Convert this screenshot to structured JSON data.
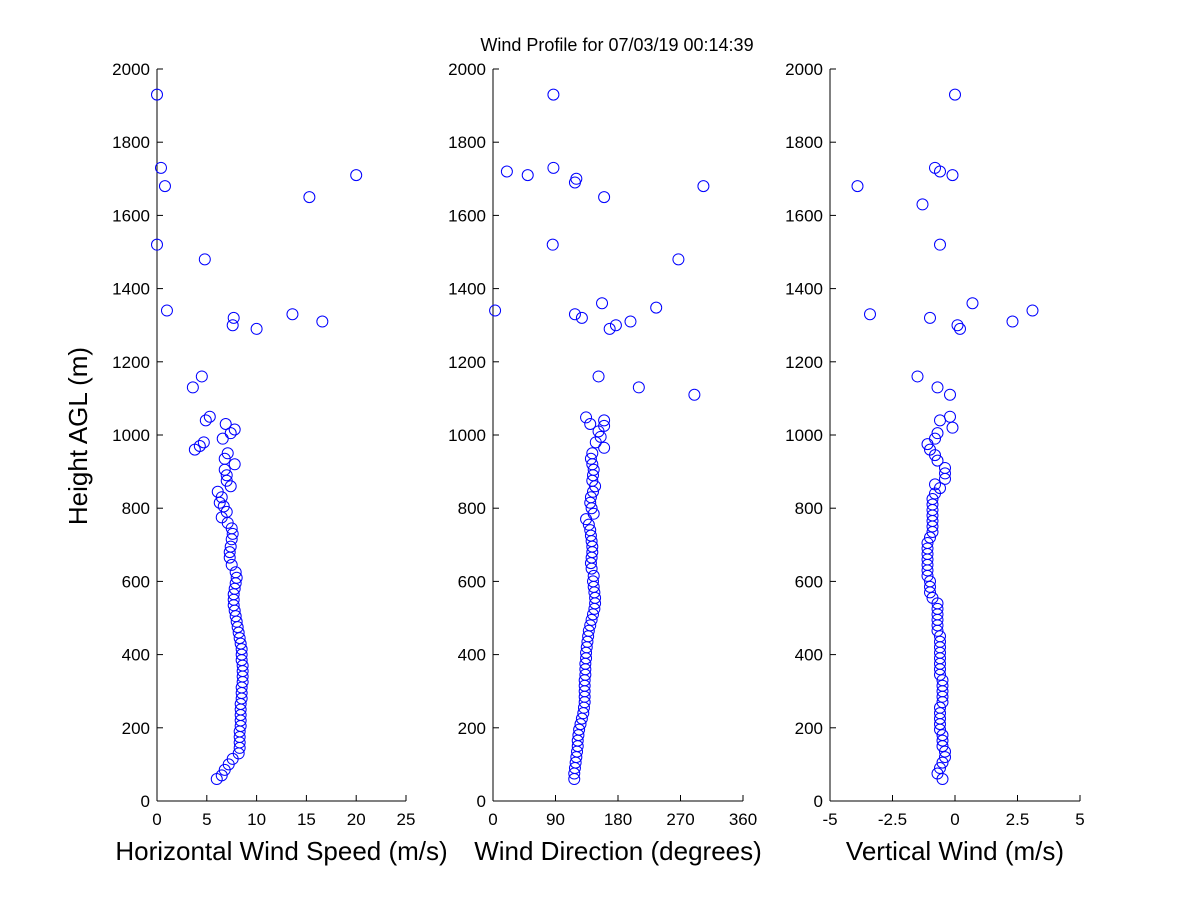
{
  "title": "Wind Profile for  07/03/19 00:14:39",
  "ylabel": "Height AGL (m)",
  "chart_data": [
    {
      "type": "scatter",
      "xlabel": "Horizontal Wind Speed (m/s)",
      "ylabel": "Height AGL (m)",
      "xlim": [
        0,
        25
      ],
      "ylim": [
        0,
        2000
      ],
      "xticks": [
        "0",
        "5",
        "10",
        "15",
        "20",
        "25"
      ],
      "yticks": [
        "0",
        "200",
        "400",
        "600",
        "800",
        "1000",
        "1200",
        "1400",
        "1600",
        "1800",
        "2000"
      ],
      "marker_color": "#0000ff",
      "points": [
        [
          6.0,
          60
        ],
        [
          6.5,
          70
        ],
        [
          6.8,
          85
        ],
        [
          7.2,
          100
        ],
        [
          7.6,
          115
        ],
        [
          8.2,
          130
        ],
        [
          8.3,
          145
        ],
        [
          8.3,
          160
        ],
        [
          8.3,
          175
        ],
        [
          8.3,
          190
        ],
        [
          8.4,
          205
        ],
        [
          8.4,
          220
        ],
        [
          8.4,
          235
        ],
        [
          8.4,
          250
        ],
        [
          8.4,
          265
        ],
        [
          8.5,
          280
        ],
        [
          8.5,
          295
        ],
        [
          8.5,
          310
        ],
        [
          8.6,
          325
        ],
        [
          8.6,
          340
        ],
        [
          8.6,
          355
        ],
        [
          8.6,
          370
        ],
        [
          8.5,
          385
        ],
        [
          8.5,
          400
        ],
        [
          8.5,
          415
        ],
        [
          8.4,
          430
        ],
        [
          8.3,
          445
        ],
        [
          8.2,
          460
        ],
        [
          8.1,
          475
        ],
        [
          8.0,
          490
        ],
        [
          7.9,
          505
        ],
        [
          7.8,
          520
        ],
        [
          7.7,
          535
        ],
        [
          7.7,
          550
        ],
        [
          7.7,
          565
        ],
        [
          7.8,
          580
        ],
        [
          7.9,
          595
        ],
        [
          8.0,
          610
        ],
        [
          7.9,
          625
        ],
        [
          7.5,
          645
        ],
        [
          7.3,
          665
        ],
        [
          7.3,
          680
        ],
        [
          7.4,
          695
        ],
        [
          7.5,
          715
        ],
        [
          7.6,
          730
        ],
        [
          7.5,
          745
        ],
        [
          7.1,
          760
        ],
        [
          6.5,
          775
        ],
        [
          7.0,
          790
        ],
        [
          6.7,
          805
        ],
        [
          6.3,
          815
        ],
        [
          6.5,
          830
        ],
        [
          6.1,
          845
        ],
        [
          7.4,
          860
        ],
        [
          7.0,
          875
        ],
        [
          7.0,
          890
        ],
        [
          6.8,
          905
        ],
        [
          7.8,
          920
        ],
        [
          6.8,
          935
        ],
        [
          7.1,
          950
        ],
        [
          3.8,
          960
        ],
        [
          4.3,
          970
        ],
        [
          4.7,
          980
        ],
        [
          6.6,
          990
        ],
        [
          7.4,
          1005
        ],
        [
          7.8,
          1015
        ],
        [
          6.9,
          1030
        ],
        [
          4.9,
          1040
        ],
        [
          5.3,
          1050
        ],
        [
          3.6,
          1130
        ],
        [
          4.5,
          1160
        ],
        [
          10.0,
          1290
        ],
        [
          7.6,
          1300
        ],
        [
          16.6,
          1310
        ],
        [
          7.7,
          1320
        ],
        [
          13.6,
          1330
        ],
        [
          1.0,
          1340
        ],
        [
          4.8,
          1480
        ],
        [
          0.0,
          1520
        ],
        [
          15.3,
          1650
        ],
        [
          0.8,
          1680
        ],
        [
          20.0,
          1710
        ],
        [
          0.4,
          1730
        ],
        [
          0.0,
          1930
        ]
      ]
    },
    {
      "type": "scatter",
      "xlabel": "Wind Direction (degrees)",
      "ylabel": "",
      "xlim": [
        0,
        360
      ],
      "ylim": [
        0,
        2000
      ],
      "xticks": [
        "0",
        "90",
        "180",
        "270",
        "360"
      ],
      "yticks": [
        "0",
        "200",
        "400",
        "600",
        "800",
        "1000",
        "1200",
        "1400",
        "1600",
        "1800",
        "2000"
      ],
      "marker_color": "#0000ff",
      "points": [
        [
          117,
          60
        ],
        [
          117,
          75
        ],
        [
          118,
          90
        ],
        [
          119,
          105
        ],
        [
          120,
          120
        ],
        [
          121,
          135
        ],
        [
          122,
          150
        ],
        [
          122,
          165
        ],
        [
          123,
          180
        ],
        [
          124,
          195
        ],
        [
          126,
          210
        ],
        [
          128,
          225
        ],
        [
          130,
          240
        ],
        [
          131,
          255
        ],
        [
          132,
          270
        ],
        [
          132,
          285
        ],
        [
          132,
          300
        ],
        [
          132,
          315
        ],
        [
          132,
          330
        ],
        [
          133,
          345
        ],
        [
          133,
          360
        ],
        [
          133,
          375
        ],
        [
          134,
          390
        ],
        [
          134,
          405
        ],
        [
          135,
          420
        ],
        [
          136,
          435
        ],
        [
          137,
          450
        ],
        [
          138,
          465
        ],
        [
          140,
          480
        ],
        [
          142,
          495
        ],
        [
          144,
          510
        ],
        [
          146,
          525
        ],
        [
          147,
          540
        ],
        [
          147,
          555
        ],
        [
          146,
          570
        ],
        [
          145,
          585
        ],
        [
          144,
          600
        ],
        [
          145,
          615
        ],
        [
          142,
          635
        ],
        [
          141,
          650
        ],
        [
          142,
          665
        ],
        [
          143,
          680
        ],
        [
          143,
          695
        ],
        [
          142,
          710
        ],
        [
          141,
          725
        ],
        [
          140,
          740
        ],
        [
          138,
          755
        ],
        [
          134,
          770
        ],
        [
          145,
          785
        ],
        [
          142,
          800
        ],
        [
          140,
          815
        ],
        [
          141,
          830
        ],
        [
          144,
          845
        ],
        [
          147,
          860
        ],
        [
          143,
          875
        ],
        [
          144,
          890
        ],
        [
          145,
          905
        ],
        [
          143,
          920
        ],
        [
          141,
          935
        ],
        [
          143,
          950
        ],
        [
          160,
          965
        ],
        [
          148,
          980
        ],
        [
          155,
          995
        ],
        [
          152,
          1010
        ],
        [
          160,
          1025
        ],
        [
          140,
          1030
        ],
        [
          160,
          1040
        ],
        [
          134,
          1048
        ],
        [
          210,
          1130
        ],
        [
          152,
          1160
        ],
        [
          290,
          1110
        ],
        [
          168,
          1290
        ],
        [
          177,
          1300
        ],
        [
          198,
          1310
        ],
        [
          128,
          1320
        ],
        [
          118,
          1330
        ],
        [
          235,
          1348
        ],
        [
          157,
          1360
        ],
        [
          3,
          1340
        ],
        [
          267,
          1480
        ],
        [
          86,
          1520
        ],
        [
          160,
          1650
        ],
        [
          303,
          1680
        ],
        [
          118,
          1690
        ],
        [
          120,
          1700
        ],
        [
          20,
          1720
        ],
        [
          50,
          1710
        ],
        [
          87,
          1730
        ],
        [
          87,
          1930
        ]
      ]
    },
    {
      "type": "scatter",
      "xlabel": "Vertical Wind (m/s)",
      "ylabel": "",
      "xlim": [
        -5,
        5
      ],
      "ylim": [
        0,
        2000
      ],
      "xticks": [
        "-5",
        "-2.5",
        "0",
        "2.5",
        "5"
      ],
      "yticks": [
        "0",
        "200",
        "400",
        "600",
        "800",
        "1000",
        "1200",
        "1400",
        "1600",
        "1800",
        "2000"
      ],
      "marker_color": "#0000ff",
      "points": [
        [
          -0.5,
          60
        ],
        [
          -0.7,
          75
        ],
        [
          -0.6,
          90
        ],
        [
          -0.5,
          105
        ],
        [
          -0.4,
          120
        ],
        [
          -0.4,
          135
        ],
        [
          -0.5,
          150
        ],
        [
          -0.5,
          165
        ],
        [
          -0.5,
          180
        ],
        [
          -0.6,
          195
        ],
        [
          -0.6,
          210
        ],
        [
          -0.6,
          225
        ],
        [
          -0.6,
          240
        ],
        [
          -0.6,
          255
        ],
        [
          -0.5,
          270
        ],
        [
          -0.5,
          285
        ],
        [
          -0.5,
          300
        ],
        [
          -0.5,
          315
        ],
        [
          -0.5,
          330
        ],
        [
          -0.6,
          345
        ],
        [
          -0.6,
          360
        ],
        [
          -0.6,
          375
        ],
        [
          -0.6,
          390
        ],
        [
          -0.6,
          405
        ],
        [
          -0.6,
          420
        ],
        [
          -0.6,
          435
        ],
        [
          -0.6,
          450
        ],
        [
          -0.7,
          465
        ],
        [
          -0.7,
          480
        ],
        [
          -0.7,
          495
        ],
        [
          -0.7,
          510
        ],
        [
          -0.7,
          525
        ],
        [
          -0.7,
          540
        ],
        [
          -0.9,
          555
        ],
        [
          -1.0,
          570
        ],
        [
          -1.0,
          585
        ],
        [
          -1.0,
          600
        ],
        [
          -1.1,
          615
        ],
        [
          -1.1,
          630
        ],
        [
          -1.1,
          645
        ],
        [
          -1.1,
          660
        ],
        [
          -1.1,
          675
        ],
        [
          -1.1,
          690
        ],
        [
          -1.1,
          705
        ],
        [
          -1.0,
          720
        ],
        [
          -0.9,
          735
        ],
        [
          -0.9,
          750
        ],
        [
          -0.9,
          765
        ],
        [
          -0.9,
          780
        ],
        [
          -0.9,
          795
        ],
        [
          -0.9,
          810
        ],
        [
          -0.9,
          825
        ],
        [
          -0.8,
          840
        ],
        [
          -0.6,
          855
        ],
        [
          -0.8,
          865
        ],
        [
          -0.4,
          880
        ],
        [
          -0.4,
          895
        ],
        [
          -0.4,
          910
        ],
        [
          -0.7,
          930
        ],
        [
          -0.8,
          945
        ],
        [
          -1.0,
          960
        ],
        [
          -1.1,
          975
        ],
        [
          -0.8,
          990
        ],
        [
          -0.7,
          1005
        ],
        [
          -0.1,
          1020
        ],
        [
          -0.6,
          1040
        ],
        [
          -0.2,
          1050
        ],
        [
          -0.2,
          1110
        ],
        [
          -0.7,
          1130
        ],
        [
          -1.5,
          1160
        ],
        [
          0.2,
          1290
        ],
        [
          0.1,
          1300
        ],
        [
          2.3,
          1310
        ],
        [
          -1.0,
          1320
        ],
        [
          -3.4,
          1330
        ],
        [
          3.1,
          1340
        ],
        [
          0.7,
          1360
        ],
        [
          -0.6,
          1520
        ],
        [
          -1.3,
          1630
        ],
        [
          -3.9,
          1680
        ],
        [
          -0.1,
          1710
        ],
        [
          -0.6,
          1720
        ],
        [
          -0.8,
          1730
        ],
        [
          0.0,
          1930
        ]
      ]
    }
  ]
}
